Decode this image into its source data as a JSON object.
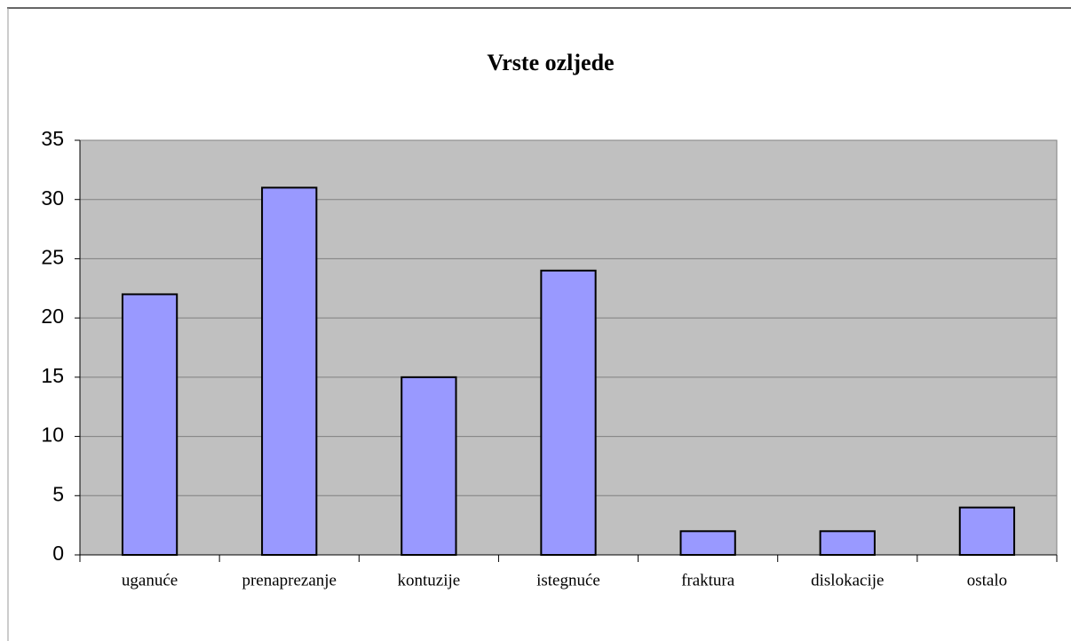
{
  "chart_data": {
    "type": "bar",
    "title": "Vrste ozljede",
    "categories": [
      "uganuće",
      "prenaprezanje",
      "kontuzije",
      "istegnuće",
      "fraktura",
      "dislokacije",
      "ostalo"
    ],
    "values": [
      22,
      31,
      15,
      24,
      2,
      2,
      4
    ],
    "color": "#9999ff",
    "ylim": [
      0,
      35
    ],
    "yticks": [
      0,
      5,
      10,
      15,
      20,
      25,
      30,
      35
    ],
    "grid": true
  }
}
